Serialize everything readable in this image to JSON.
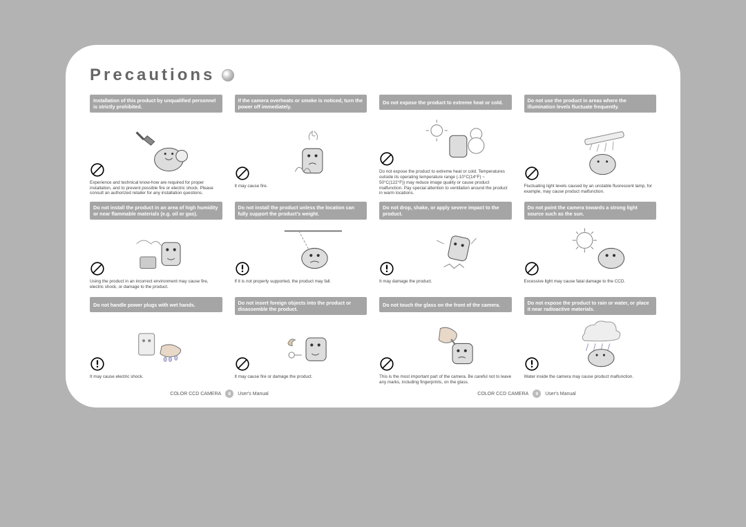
{
  "title": "Precautions",
  "colors": {
    "outer_bg": "#b3b3b3",
    "page_bg": "#ffffff",
    "title_color": "#666666",
    "header_bg": "#a5a5a5",
    "header_text": "#ffffff",
    "caption_color": "#444444",
    "symbol_stroke": "#000000"
  },
  "footer": {
    "left_text": "COLOR CCD CAMERA",
    "page_left": "8",
    "page_right": "9",
    "right_text": "User's Manual"
  },
  "cells": [
    {
      "header": "Installation of this product by unqualified personnel is strictly prohibited.",
      "symbol": "prohibit",
      "caption": "Experience and technical know-how are required for proper installation, and to prevent possible fire or electric shock. Please consult an authorized retailer for any installation questions."
    },
    {
      "header": "If the camera overheats or smoke is noticed, turn the power off immediately.",
      "symbol": "prohibit",
      "caption": "It may cause fire."
    },
    {
      "header": "Do not expose the product to extreme heat or cold.",
      "symbol": "prohibit",
      "caption": "Do not expose the product to extreme heat or cold. Temperatures outside its operating temperature range (-10°C(14°F) ~ 50°C(122°F)) may reduce image quality or cause product malfunction. Pay special attention to ventilation around the product in warm locations."
    },
    {
      "header": "Do not use the product in areas where the illumination levels fluctuate frequently.",
      "symbol": "prohibit",
      "caption": "Fluctuating light levels caused by an unstable fluorescent lamp, for example, may cause product malfunction."
    },
    {
      "header": "Do not install the product in an area of high humidity or near flammable materials (e.g. oil or gas).",
      "symbol": "prohibit",
      "caption": "Using the product in an incorrect environment may cause fire, electric shock, or damage to the product."
    },
    {
      "header": "Do not install the product unless the location can fully support the product's weight.",
      "symbol": "warn",
      "caption": "If it is not properly supported, the product may fall."
    },
    {
      "header": "Do not drop, shake, or apply severe impact to the product.",
      "symbol": "warn",
      "caption": "It may damage the product."
    },
    {
      "header": "Do not point the camera towards a strong light source such as the sun.",
      "symbol": "prohibit",
      "caption": "Excessive light may cause fatal damage to the CCD."
    },
    {
      "header": "Do not handle power plugs with wet hands.",
      "symbol": "warn",
      "caption": "It may cause electric shock."
    },
    {
      "header": "Do not insert foreign objects into the product or disassemble the product.",
      "symbol": "prohibit",
      "caption": "It may cause fire or damage the product."
    },
    {
      "header": "Do not touch the glass on the front of the camera.",
      "symbol": "prohibit",
      "caption": "This is the most important part of the camera. Be careful not to leave any marks, including fingerprints, on the glass."
    },
    {
      "header": "Do not expose the product to rain or water, or place it near radioactive materials.",
      "symbol": "warn",
      "caption": "Water inside the camera may cause product malfunction."
    }
  ]
}
